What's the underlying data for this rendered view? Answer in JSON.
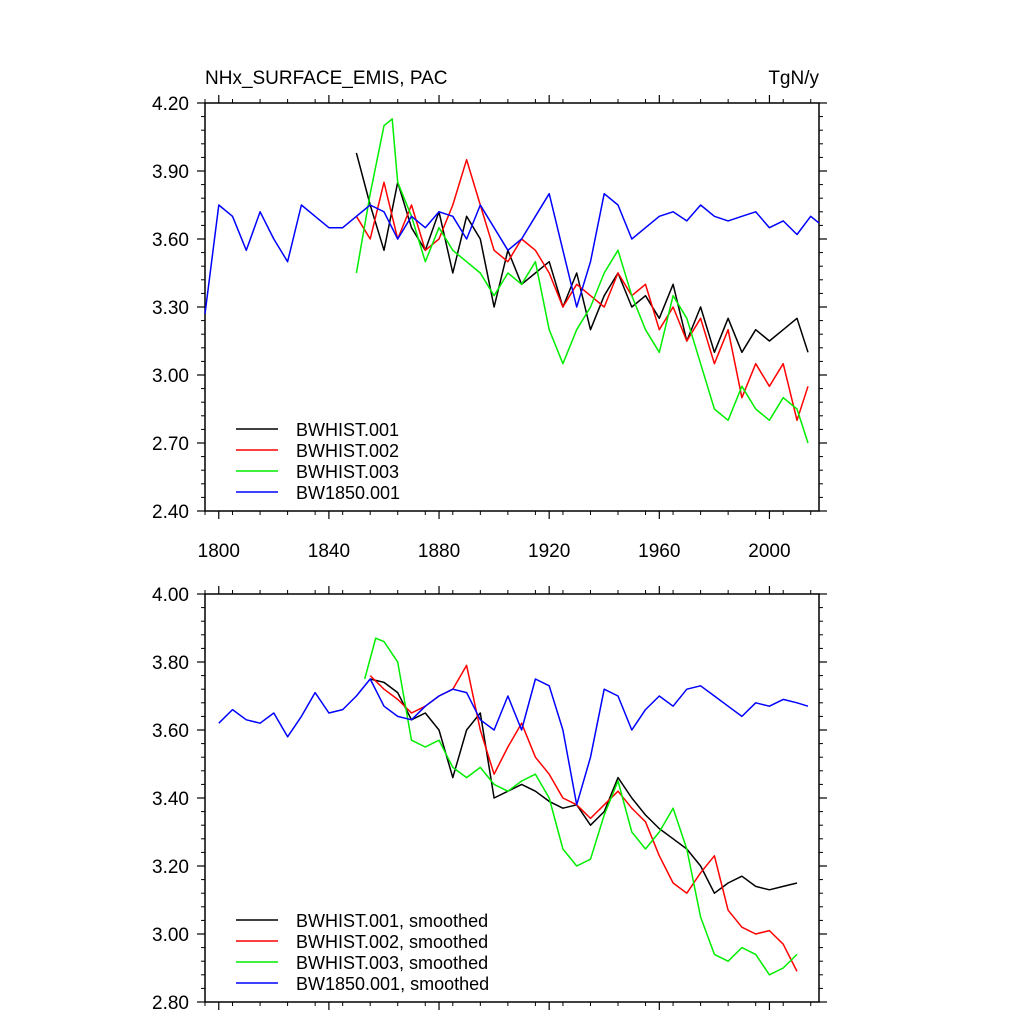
{
  "chart_data": [
    {
      "type": "line",
      "title": "NHx_SURFACE_EMIS, PAC",
      "units": "TgN/y",
      "xlim": [
        1795,
        2018
      ],
      "ylim": [
        2.4,
        4.2
      ],
      "x_ticks": [
        1800,
        1840,
        1880,
        1920,
        1960,
        2000
      ],
      "y_ticks": [
        2.4,
        2.7,
        3.0,
        3.3,
        3.6,
        3.9,
        4.2
      ],
      "y_tick_labels": [
        "2.40",
        "2.70",
        "3.00",
        "3.30",
        "3.60",
        "3.90",
        "4.20"
      ],
      "grid": false,
      "legend_position": "bottom-left",
      "series": [
        {
          "name": "BWHIST.001",
          "color": "#000000",
          "x": [
            1850,
            1855,
            1860,
            1865,
            1870,
            1875,
            1880,
            1885,
            1890,
            1895,
            1900,
            1905,
            1910,
            1915,
            1920,
            1925,
            1930,
            1935,
            1940,
            1945,
            1950,
            1955,
            1960,
            1965,
            1970,
            1975,
            1980,
            1985,
            1990,
            1995,
            2000,
            2005,
            2010,
            2014
          ],
          "values": [
            3.98,
            3.75,
            3.55,
            3.85,
            3.65,
            3.55,
            3.72,
            3.45,
            3.7,
            3.6,
            3.3,
            3.55,
            3.4,
            3.45,
            3.5,
            3.3,
            3.45,
            3.2,
            3.35,
            3.45,
            3.3,
            3.35,
            3.25,
            3.4,
            3.15,
            3.3,
            3.1,
            3.25,
            3.1,
            3.2,
            3.15,
            3.2,
            3.25,
            3.1
          ]
        },
        {
          "name": "BWHIST.002",
          "color": "#ff0000",
          "x": [
            1850,
            1855,
            1860,
            1865,
            1870,
            1875,
            1880,
            1885,
            1890,
            1895,
            1900,
            1905,
            1910,
            1915,
            1920,
            1925,
            1930,
            1935,
            1940,
            1945,
            1950,
            1955,
            1960,
            1965,
            1970,
            1975,
            1980,
            1985,
            1990,
            1995,
            2000,
            2005,
            2010,
            2014
          ],
          "values": [
            3.7,
            3.6,
            3.85,
            3.6,
            3.75,
            3.55,
            3.6,
            3.75,
            3.95,
            3.75,
            3.55,
            3.5,
            3.6,
            3.55,
            3.45,
            3.3,
            3.4,
            3.35,
            3.3,
            3.45,
            3.35,
            3.4,
            3.2,
            3.3,
            3.15,
            3.25,
            3.05,
            3.2,
            2.9,
            3.05,
            2.95,
            3.05,
            2.8,
            2.95
          ]
        },
        {
          "name": "BWHIST.003",
          "color": "#00ee00",
          "x": [
            1850,
            1855,
            1860,
            1863,
            1865,
            1870,
            1875,
            1880,
            1885,
            1890,
            1895,
            1900,
            1905,
            1910,
            1915,
            1920,
            1925,
            1930,
            1935,
            1940,
            1945,
            1950,
            1955,
            1960,
            1965,
            1970,
            1975,
            1980,
            1985,
            1990,
            1995,
            2000,
            2005,
            2010,
            2014
          ],
          "values": [
            3.45,
            3.8,
            4.1,
            4.13,
            3.85,
            3.7,
            3.5,
            3.65,
            3.55,
            3.5,
            3.45,
            3.35,
            3.45,
            3.4,
            3.5,
            3.2,
            3.05,
            3.2,
            3.3,
            3.45,
            3.55,
            3.35,
            3.2,
            3.1,
            3.35,
            3.25,
            3.05,
            2.85,
            2.8,
            2.95,
            2.85,
            2.8,
            2.9,
            2.85,
            2.7
          ]
        },
        {
          "name": "BW1850.001",
          "color": "#0000ff",
          "x": [
            1795,
            1800,
            1805,
            1810,
            1815,
            1820,
            1825,
            1830,
            1835,
            1840,
            1845,
            1850,
            1855,
            1860,
            1865,
            1870,
            1875,
            1880,
            1885,
            1890,
            1895,
            1900,
            1905,
            1910,
            1915,
            1920,
            1925,
            1930,
            1935,
            1940,
            1945,
            1950,
            1955,
            1960,
            1965,
            1970,
            1975,
            1980,
            1985,
            1990,
            1995,
            2000,
            2005,
            2010,
            2015,
            2018
          ],
          "values": [
            3.27,
            3.75,
            3.7,
            3.55,
            3.72,
            3.6,
            3.5,
            3.75,
            3.7,
            3.65,
            3.65,
            3.7,
            3.75,
            3.72,
            3.6,
            3.7,
            3.65,
            3.72,
            3.7,
            3.6,
            3.75,
            3.65,
            3.55,
            3.6,
            3.7,
            3.8,
            3.55,
            3.3,
            3.5,
            3.8,
            3.75,
            3.6,
            3.65,
            3.7,
            3.72,
            3.68,
            3.75,
            3.7,
            3.68,
            3.7,
            3.72,
            3.65,
            3.68,
            3.62,
            3.7,
            3.67
          ]
        }
      ]
    },
    {
      "type": "line",
      "title": "",
      "xlim": [
        1795,
        2018
      ],
      "ylim": [
        2.8,
        4.0
      ],
      "x_ticks": [
        1800,
        1840,
        1880,
        1920,
        1960,
        2000
      ],
      "y_ticks": [
        2.8,
        3.0,
        3.2,
        3.4,
        3.6,
        3.8,
        4.0
      ],
      "y_tick_labels": [
        "2.80",
        "3.00",
        "3.20",
        "3.40",
        "3.60",
        "3.80",
        "4.00"
      ],
      "grid": false,
      "legend_position": "bottom-left",
      "series": [
        {
          "name": "BWHIST.001, smoothed",
          "color": "#000000",
          "x": [
            1855,
            1860,
            1865,
            1870,
            1875,
            1880,
            1885,
            1890,
            1895,
            1900,
            1905,
            1910,
            1915,
            1920,
            1925,
            1930,
            1935,
            1940,
            1945,
            1950,
            1955,
            1960,
            1965,
            1970,
            1975,
            1980,
            1985,
            1990,
            1995,
            2000,
            2005,
            2010
          ],
          "values": [
            3.75,
            3.74,
            3.71,
            3.63,
            3.65,
            3.6,
            3.46,
            3.6,
            3.65,
            3.4,
            3.42,
            3.44,
            3.42,
            3.39,
            3.37,
            3.38,
            3.32,
            3.36,
            3.46,
            3.4,
            3.35,
            3.31,
            3.28,
            3.25,
            3.2,
            3.12,
            3.15,
            3.17,
            3.14,
            3.13,
            3.14,
            3.15
          ]
        },
        {
          "name": "BWHIST.002, smoothed",
          "color": "#ff0000",
          "x": [
            1855,
            1860,
            1865,
            1870,
            1875,
            1880,
            1885,
            1890,
            1895,
            1900,
            1905,
            1910,
            1915,
            1920,
            1925,
            1930,
            1935,
            1940,
            1945,
            1950,
            1955,
            1960,
            1965,
            1970,
            1975,
            1980,
            1985,
            1990,
            1995,
            2000,
            2005,
            2010
          ],
          "values": [
            3.76,
            3.72,
            3.69,
            3.65,
            3.67,
            3.7,
            3.72,
            3.79,
            3.6,
            3.47,
            3.55,
            3.62,
            3.52,
            3.47,
            3.4,
            3.38,
            3.34,
            3.38,
            3.42,
            3.37,
            3.33,
            3.23,
            3.15,
            3.12,
            3.18,
            3.23,
            3.07,
            3.02,
            3.0,
            3.01,
            2.97,
            2.89
          ]
        },
        {
          "name": "BWHIST.003, smoothed",
          "color": "#00ee00",
          "x": [
            1853,
            1857,
            1860,
            1865,
            1870,
            1875,
            1880,
            1885,
            1890,
            1895,
            1900,
            1905,
            1910,
            1915,
            1920,
            1925,
            1930,
            1935,
            1940,
            1945,
            1950,
            1955,
            1960,
            1965,
            1970,
            1975,
            1980,
            1985,
            1990,
            1995,
            2000,
            2005,
            2010
          ],
          "values": [
            3.75,
            3.87,
            3.86,
            3.8,
            3.57,
            3.55,
            3.57,
            3.49,
            3.46,
            3.49,
            3.44,
            3.42,
            3.45,
            3.47,
            3.4,
            3.25,
            3.2,
            3.22,
            3.35,
            3.45,
            3.3,
            3.25,
            3.3,
            3.37,
            3.25,
            3.05,
            2.94,
            2.92,
            2.96,
            2.94,
            2.88,
            2.9,
            2.94
          ]
        },
        {
          "name": "BW1850.001, smoothed",
          "color": "#0000ff",
          "x": [
            1800,
            1805,
            1810,
            1815,
            1820,
            1825,
            1830,
            1835,
            1840,
            1845,
            1850,
            1855,
            1860,
            1865,
            1870,
            1875,
            1880,
            1885,
            1890,
            1895,
            1900,
            1905,
            1910,
            1915,
            1920,
            1925,
            1930,
            1935,
            1940,
            1945,
            1950,
            1955,
            1960,
            1965,
            1970,
            1975,
            1980,
            1985,
            1990,
            1995,
            2000,
            2005,
            2010,
            2014
          ],
          "values": [
            3.62,
            3.66,
            3.63,
            3.62,
            3.65,
            3.58,
            3.64,
            3.71,
            3.65,
            3.66,
            3.7,
            3.75,
            3.67,
            3.64,
            3.63,
            3.67,
            3.7,
            3.72,
            3.71,
            3.63,
            3.6,
            3.7,
            3.6,
            3.75,
            3.73,
            3.6,
            3.38,
            3.52,
            3.72,
            3.7,
            3.6,
            3.66,
            3.7,
            3.67,
            3.72,
            3.73,
            3.7,
            3.67,
            3.64,
            3.68,
            3.67,
            3.69,
            3.68,
            3.67
          ]
        }
      ]
    }
  ]
}
